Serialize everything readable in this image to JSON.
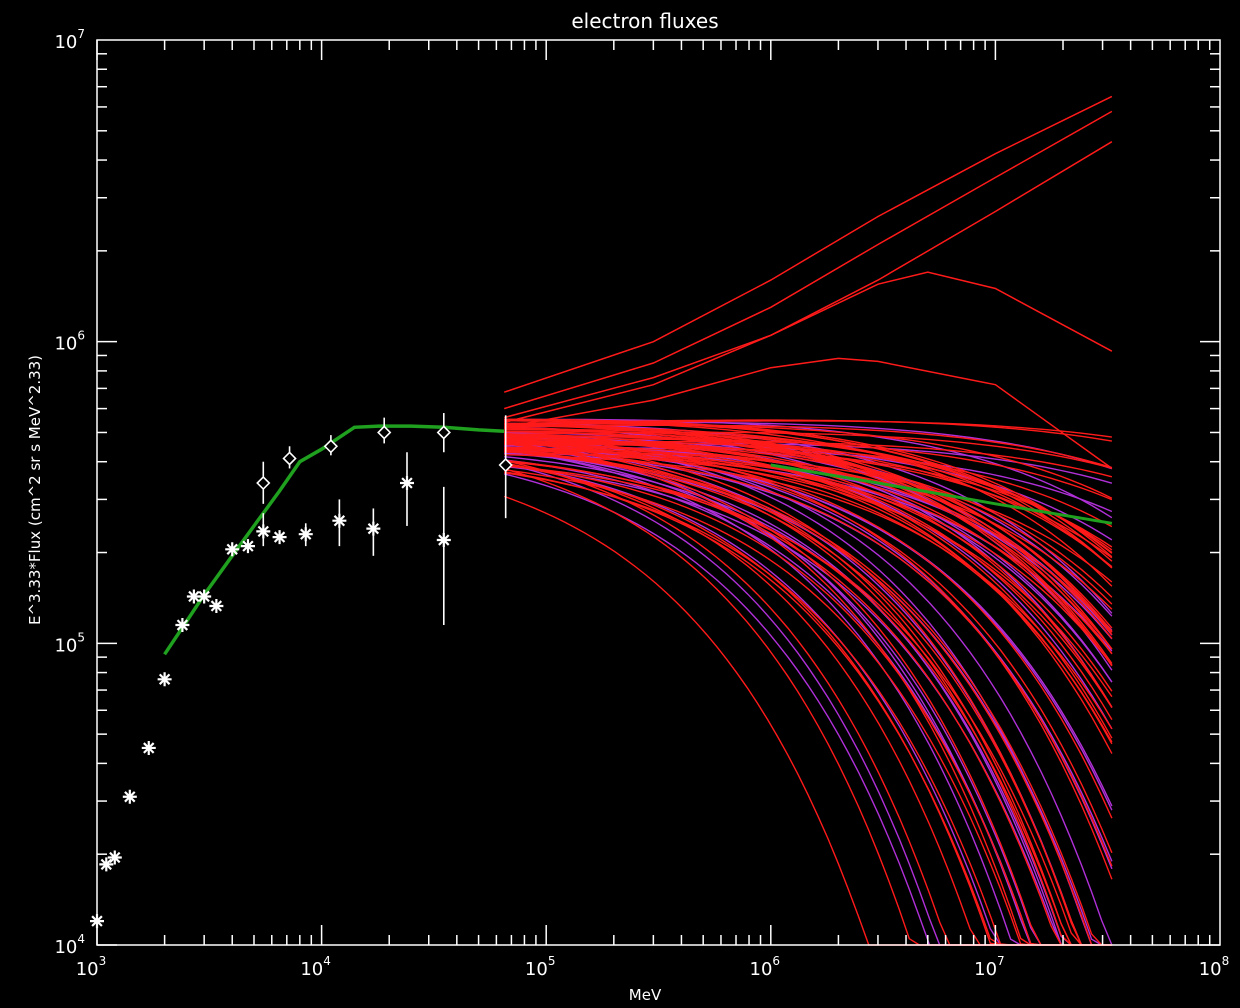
{
  "chart_data": {
    "type": "line",
    "title": "electron fluxes",
    "xlabel": "MeV",
    "ylabel": "E^3.33*Flux (cm^2 sr s MeV^2.33)",
    "xscale": "log",
    "yscale": "log",
    "xlim": [
      1000,
      100000000
    ],
    "ylim": [
      10000,
      10000000
    ],
    "grid": false,
    "legend": "none",
    "x_tick_labels": [
      {
        "base": "10",
        "exp": "3",
        "value": 1000
      },
      {
        "base": "10",
        "exp": "4",
        "value": 10000
      },
      {
        "base": "10",
        "exp": "5",
        "value": 100000
      },
      {
        "base": "10",
        "exp": "6",
        "value": 1000000
      },
      {
        "base": "10",
        "exp": "7",
        "value": 10000000
      },
      {
        "base": "10",
        "exp": "8",
        "value": 100000000
      }
    ],
    "y_tick_labels": [
      {
        "base": "10",
        "exp": "4",
        "value": 10000
      },
      {
        "base": "10",
        "exp": "5",
        "value": 100000
      },
      {
        "base": "10",
        "exp": "6",
        "value": 1000000
      },
      {
        "base": "10",
        "exp": "7",
        "value": 10000000
      }
    ],
    "colors": {
      "background": "#000000",
      "axes": "#ffffff",
      "model_fit": "#1fa01f",
      "red_curves": "#ff1a1a",
      "purple_curves": "#b030d8",
      "data_points": "#ffffff"
    },
    "model_fit": {
      "x": [
        2000,
        2500,
        3000,
        4000,
        5000,
        6500,
        8000,
        10000,
        14000,
        18000,
        25000,
        35000,
        50000,
        65000
      ],
      "y": [
        92000,
        118000,
        145000,
        195000,
        245000,
        320000,
        400000,
        440000,
        520000,
        525000,
        525000,
        520000,
        510000,
        505000
      ]
    },
    "model_fit_tail": {
      "x": [
        1000000,
        3000000,
        10000000,
        33000000
      ],
      "y": [
        390000,
        340000,
        290000,
        250000
      ]
    },
    "asterisk_points": {
      "x": [
        1000,
        1100,
        1200,
        1400,
        1700,
        2000,
        2400,
        2700,
        3000,
        3400,
        4000,
        4700,
        5500,
        6500,
        8500,
        12000,
        17000,
        24000,
        35000
      ],
      "y": [
        12000,
        18500,
        19500,
        31000,
        45000,
        76000,
        115000,
        143000,
        143000,
        133000,
        205000,
        210000,
        235000,
        225000,
        230000,
        255000,
        240000,
        340000,
        220000
      ],
      "err_low": [
        null,
        null,
        null,
        null,
        null,
        null,
        null,
        null,
        null,
        null,
        null,
        null,
        210000,
        null,
        210000,
        210000,
        195000,
        245000,
        115000
      ],
      "err_high": [
        null,
        null,
        null,
        null,
        null,
        null,
        null,
        null,
        null,
        null,
        null,
        null,
        270000,
        null,
        250000,
        300000,
        280000,
        430000,
        330000
      ]
    },
    "diamond_points": {
      "x": [
        5500,
        7200,
        11000,
        19000,
        35000,
        66000
      ],
      "y": [
        340000,
        410000,
        450000,
        500000,
        500000,
        390000
      ],
      "err_low": [
        290000,
        380000,
        420000,
        460000,
        430000,
        260000
      ],
      "err_high": [
        400000,
        450000,
        490000,
        560000,
        580000,
        570000
      ]
    },
    "curve_bundle": {
      "x_range": [
        65000,
        33000000
      ],
      "red_count": 70,
      "purple_count": 35,
      "red_upper_curves": [
        {
          "x": [
            65000,
            300000,
            1000000,
            3000000,
            10000000,
            33000000
          ],
          "y": [
            680000,
            1000000,
            1600000,
            2600000,
            4200000,
            6500000
          ]
        },
        {
          "x": [
            65000,
            300000,
            1000000,
            3000000,
            10000000,
            33000000
          ],
          "y": [
            600000,
            850000,
            1300000,
            2100000,
            3500000,
            5800000
          ]
        },
        {
          "x": [
            65000,
            300000,
            1000000,
            3000000,
            10000000,
            33000000
          ],
          "y": [
            560000,
            760000,
            1050000,
            1600000,
            2700000,
            4600000
          ]
        },
        {
          "x": [
            65000,
            300000,
            1000000,
            3000000,
            5000000,
            10000000,
            33000000
          ],
          "y": [
            540000,
            720000,
            1050000,
            1550000,
            1700000,
            1500000,
            930000
          ]
        },
        {
          "x": [
            65000,
            300000,
            1000000,
            2000000,
            3000000,
            10000000,
            33000000
          ],
          "y": [
            520000,
            640000,
            820000,
            880000,
            860000,
            720000,
            380000
          ]
        }
      ]
    }
  }
}
